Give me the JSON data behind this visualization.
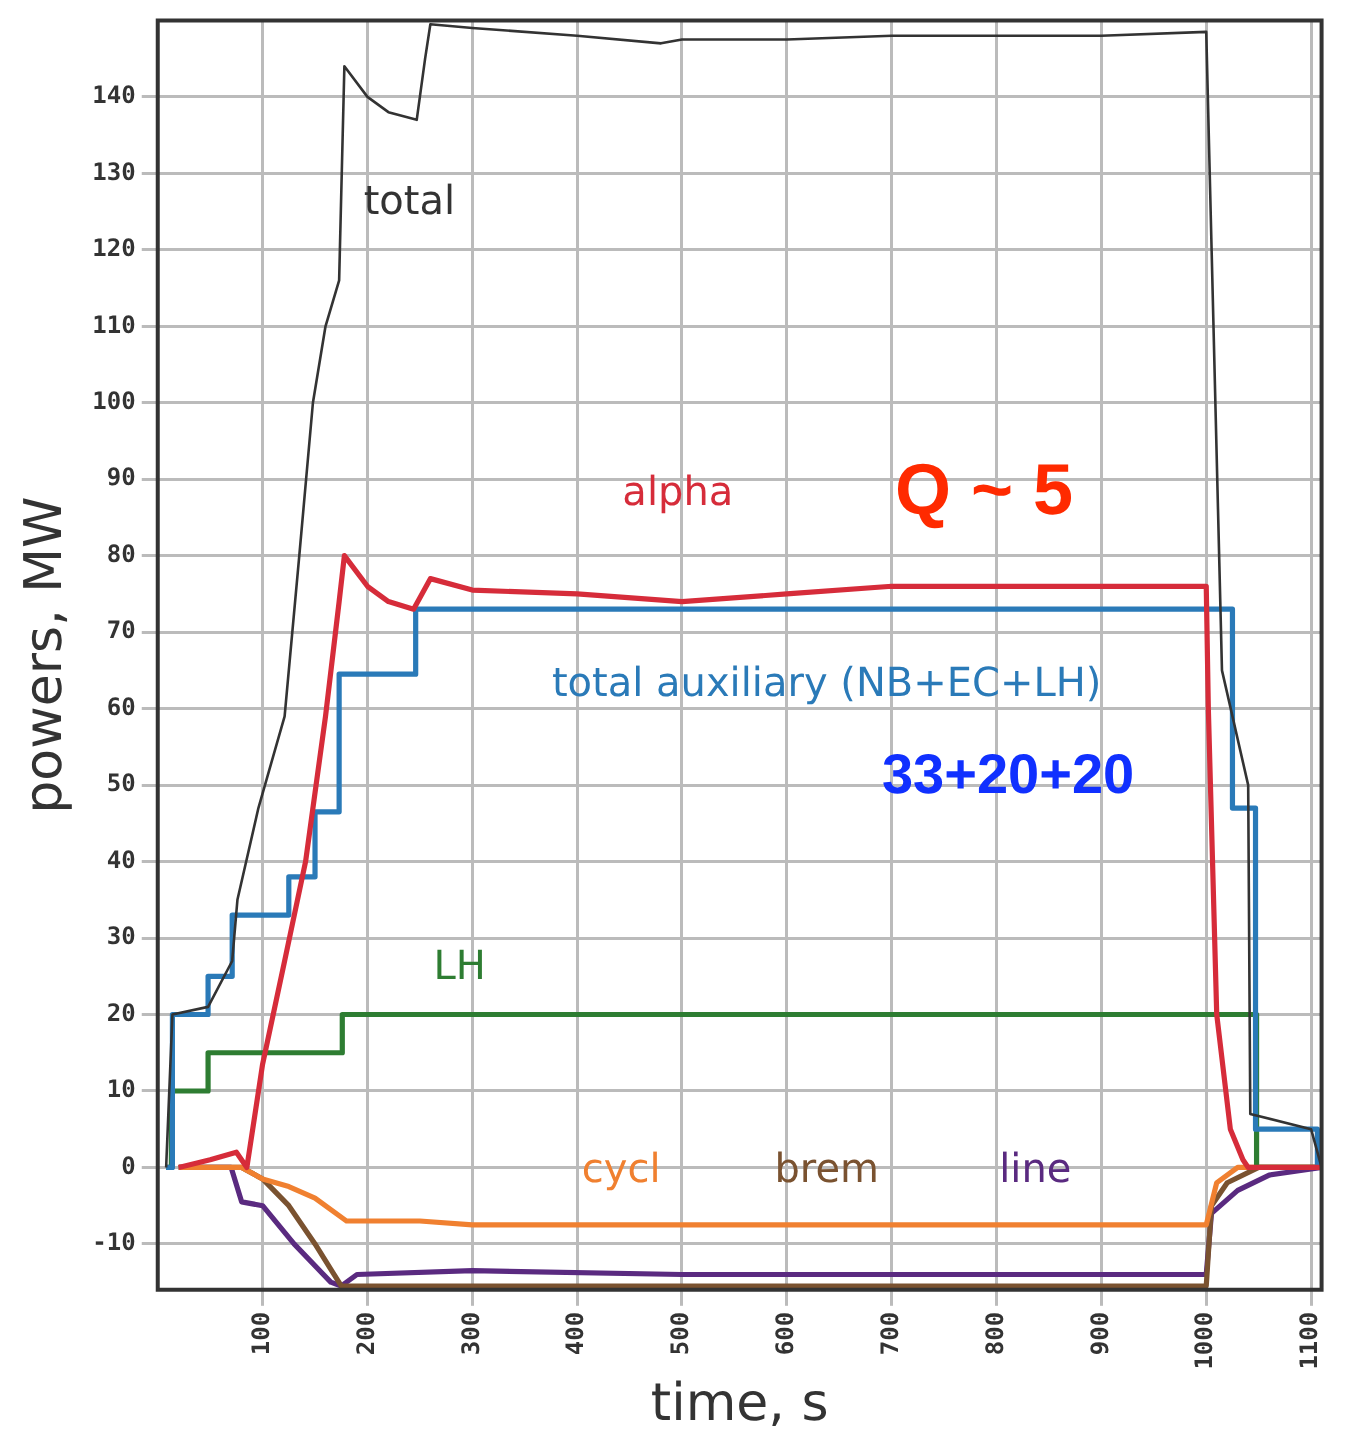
{
  "chart_data": {
    "type": "line",
    "xlabel": "time, s",
    "ylabel": "powers, MW",
    "xlim": [
      0,
      1110
    ],
    "ylim": [
      -16,
      150
    ],
    "xticks": [
      100,
      200,
      300,
      400,
      500,
      600,
      700,
      800,
      900,
      1000,
      1100
    ],
    "yticks": [
      -10,
      0,
      10,
      20,
      30,
      40,
      50,
      60,
      70,
      80,
      90,
      100,
      110,
      120,
      130,
      140
    ],
    "grid": true,
    "legend": false,
    "marker": "none",
    "line_style": "solid",
    "annotations": [
      "Q ~ 5",
      "33+20+20"
    ],
    "series": [
      {
        "name": "total",
        "color": "#333333",
        "x": [
          8,
          14,
          48,
          71,
          76,
          96,
          121,
          135,
          148,
          160,
          173,
          178,
          200,
          220,
          247,
          255,
          260,
          300,
          400,
          480,
          500,
          600,
          700,
          800,
          900,
          1000,
          1015,
          1040,
          1042,
          1100,
          1110
        ],
        "values": [
          0,
          20,
          21,
          27,
          35,
          47,
          59,
          80,
          100,
          110,
          116,
          144,
          140,
          138,
          137,
          145,
          149.5,
          149,
          148,
          147,
          147.5,
          147.5,
          148,
          148,
          148,
          148.5,
          65,
          50,
          7,
          5,
          0
        ]
      },
      {
        "name": "alpha",
        "color": "#d62c3a",
        "x": [
          20,
          50,
          75,
          85,
          100,
          121,
          141,
          160,
          173,
          178,
          200,
          220,
          244,
          260,
          300,
          400,
          500,
          600,
          700,
          800,
          900,
          1000,
          1002,
          1010,
          1023,
          1035,
          1040,
          1110
        ],
        "values": [
          0,
          1,
          2,
          0,
          13.5,
          27,
          40,
          59,
          74,
          80,
          76,
          74,
          73,
          77,
          75.5,
          75,
          74,
          75,
          76,
          76,
          76,
          76,
          60,
          20,
          5,
          1,
          0,
          0
        ]
      },
      {
        "name": "total auxiliary (NB+EC+LH)",
        "color": "#2a7ab8",
        "x": [
          8,
          14,
          14,
          48,
          48,
          71,
          71,
          125,
          125,
          150,
          150,
          173,
          173,
          246,
          246,
          1025,
          1025,
          1047,
          1047,
          1106,
          1106,
          1110
        ],
        "values": [
          0,
          0,
          20,
          20,
          25,
          25,
          33,
          33,
          38,
          38,
          46.5,
          46.5,
          64.5,
          64.5,
          73,
          73,
          47,
          47,
          5,
          5,
          0,
          0
        ]
      },
      {
        "name": "LH",
        "color": "#2e7d32",
        "x": [
          8,
          13,
          13,
          48,
          48,
          176,
          176,
          1048,
          1048,
          1110
        ],
        "values": [
          0,
          0,
          10,
          10,
          15,
          15,
          20,
          20,
          0,
          0
        ]
      },
      {
        "name": "cycl",
        "color": "#f08030",
        "x": [
          20,
          80,
          100,
          125,
          150,
          180,
          250,
          300,
          500,
          700,
          1000,
          1010,
          1030,
          1110
        ],
        "values": [
          0,
          0,
          -1.5,
          -2.5,
          -4,
          -7,
          -7,
          -7.5,
          -7.5,
          -7.5,
          -7.5,
          -2,
          0,
          0
        ]
      },
      {
        "name": "brem",
        "color": "#7a5230",
        "x": [
          20,
          80,
          100,
          125,
          150,
          175,
          200,
          500,
          1000,
          1005,
          1020,
          1050,
          1110
        ],
        "values": [
          0,
          0,
          -1.5,
          -5,
          -10,
          -15.5,
          -15.5,
          -15.5,
          -15.5,
          -5,
          -2,
          0,
          0
        ]
      },
      {
        "name": "line",
        "color": "#5a2a80",
        "x": [
          20,
          70,
          80,
          100,
          130,
          165,
          175,
          190,
          300,
          500,
          700,
          1000,
          1005,
          1030,
          1060,
          1110
        ],
        "values": [
          0,
          0,
          -4.5,
          -5,
          -10,
          -15,
          -15.5,
          -14,
          -13.5,
          -14,
          -14,
          -14,
          -6,
          -3,
          -1,
          0
        ]
      }
    ]
  }
}
